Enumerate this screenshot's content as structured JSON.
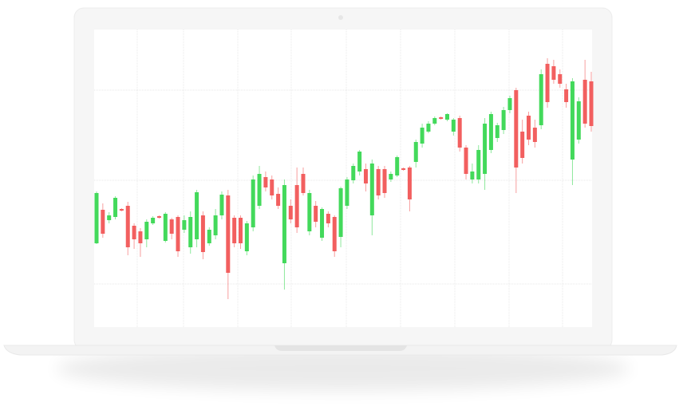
{
  "chart_data": {
    "type": "candlestick",
    "categories": [
      null,
      null,
      null,
      null,
      null,
      null,
      null,
      null,
      null,
      null,
      null,
      null,
      null,
      null,
      null,
      null,
      null,
      null,
      null,
      null,
      null,
      null,
      null,
      null,
      null,
      null,
      null,
      null,
      null,
      null,
      null,
      null,
      null,
      null,
      null,
      null,
      null,
      null,
      null,
      null,
      null,
      null,
      null,
      null,
      null,
      null,
      null,
      null,
      null,
      null,
      null,
      null,
      null,
      null,
      null,
      null,
      null,
      null,
      null,
      null,
      null,
      null,
      null,
      null,
      null,
      null,
      null,
      null,
      null,
      null,
      null,
      null,
      null,
      null,
      null,
      null,
      null,
      null,
      null,
      null
    ],
    "open": [
      105,
      147,
      134,
      138,
      148,
      152,
      127,
      120,
      110,
      130,
      139,
      108,
      135,
      138,
      122,
      100,
      110,
      140,
      105,
      115,
      140,
      165,
      137,
      137,
      95,
      125,
      152,
      188,
      185,
      167,
      80,
      152,
      178,
      192,
      120,
      152,
      112,
      142,
      138,
      113,
      152,
      184,
      195,
      198,
      140,
      198,
      198,
      185,
      190,
      199,
      200,
      207,
      230,
      245,
      255,
      263,
      260,
      245,
      262,
      225,
      185,
      185,
      192,
      222,
      237,
      247,
      272,
      297,
      245,
      265,
      250,
      253,
      330,
      327,
      317,
      298,
      210,
      235,
      310,
      308
    ],
    "high": [
      170,
      155,
      144,
      164,
      149,
      157,
      130,
      124,
      135,
      139,
      140,
      144,
      137,
      140,
      140,
      145,
      172,
      145,
      125,
      148,
      170,
      172,
      140,
      140,
      133,
      190,
      202,
      195,
      190,
      175,
      185,
      160,
      200,
      200,
      172,
      158,
      150,
      145,
      140,
      176,
      188,
      205,
      222,
      205,
      210,
      202,
      202,
      195,
      215,
      200,
      202,
      235,
      255,
      258,
      264,
      264,
      268,
      262,
      265,
      228,
      205,
      228,
      262,
      270,
      256,
      276,
      290,
      300,
      260,
      270,
      260,
      323,
      337,
      335,
      323,
      305,
      312,
      288,
      335,
      320
    ],
    "low": [
      104,
      112,
      130,
      135,
      145,
      90,
      98,
      88,
      100,
      128,
      136,
      106,
      110,
      88,
      118,
      92,
      100,
      85,
      102,
      110,
      135,
      35,
      100,
      98,
      90,
      120,
      148,
      170,
      160,
      148,
      47,
      130,
      118,
      165,
      115,
      125,
      108,
      125,
      88,
      100,
      148,
      180,
      190,
      170,
      115,
      160,
      162,
      182,
      188,
      196,
      145,
      200,
      225,
      243,
      253,
      260,
      258,
      240,
      220,
      185,
      180,
      180,
      172,
      218,
      232,
      242,
      268,
      168,
      205,
      228,
      225,
      248,
      275,
      305,
      300,
      275,
      178,
      230,
      250,
      245
    ],
    "close": [
      168,
      117,
      140,
      162,
      146,
      100,
      110,
      105,
      132,
      137,
      137,
      142,
      117,
      95,
      134,
      138,
      169,
      94,
      122,
      140,
      166,
      68,
      105,
      105,
      130,
      185,
      192,
      175,
      165,
      152,
      178,
      135,
      125,
      168,
      168,
      132,
      148,
      130,
      95,
      174,
      185,
      202,
      220,
      180,
      205,
      165,
      168,
      192,
      213,
      197,
      160,
      232,
      250,
      255,
      262,
      261,
      267,
      260,
      225,
      192,
      195,
      222,
      255,
      267,
      253,
      272,
      287,
      200,
      212,
      235,
      232,
      317,
      282,
      310,
      305,
      282,
      308,
      283,
      255,
      252
    ],
    "up_color": "#43d95b",
    "down_color": "#f25f5f",
    "ylim": [
      0,
      373
    ],
    "yticks": [
      54,
      184,
      297
    ],
    "grid": true
  }
}
